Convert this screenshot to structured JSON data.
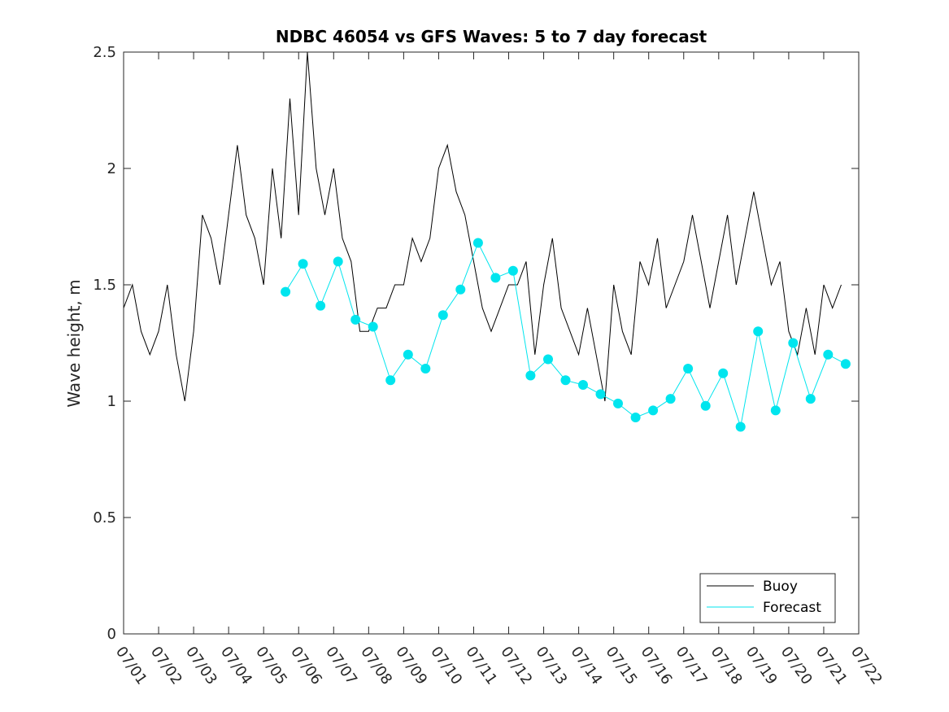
{
  "chart_data": {
    "type": "line",
    "title": "NDBC 46054 vs GFS Waves: 5 to 7 day forecast",
    "xlabel": "",
    "ylabel": "Wave height, m",
    "xlim": [
      "07/01",
      "07/22"
    ],
    "ylim": [
      0,
      2.5
    ],
    "x_tick_labels": [
      "07/01",
      "07/02",
      "07/03",
      "07/04",
      "07/05",
      "07/06",
      "07/07",
      "07/08",
      "07/09",
      "07/10",
      "07/11",
      "07/12",
      "07/13",
      "07/14",
      "07/15",
      "07/16",
      "07/17",
      "07/18",
      "07/19",
      "07/20",
      "07/21",
      "07/22"
    ],
    "y_ticks": [
      0,
      0.5,
      1,
      1.5,
      2,
      2.5
    ],
    "y_tick_labels": [
      "0",
      "0.5",
      "1",
      "1.5",
      "2",
      "2.5"
    ],
    "grid": false,
    "legend": {
      "placement": "bottom-right",
      "entries": [
        "Buoy",
        "Forecast"
      ]
    },
    "colors": {
      "buoy": "#000000",
      "forecast": "#00e5ee"
    },
    "series": [
      {
        "name": "Buoy",
        "x": [
          "07/01 00:00",
          "07/01 06:00",
          "07/01 12:00",
          "07/01 18:00",
          "07/02 00:00",
          "07/02 06:00",
          "07/02 12:00",
          "07/02 18:00",
          "07/03 00:00",
          "07/03 06:00",
          "07/03 12:00",
          "07/03 18:00",
          "07/04 00:00",
          "07/04 06:00",
          "07/04 12:00",
          "07/04 18:00",
          "07/05 00:00",
          "07/05 06:00",
          "07/05 12:00",
          "07/05 18:00",
          "07/06 00:00",
          "07/06 06:00",
          "07/06 12:00",
          "07/06 18:00",
          "07/07 00:00",
          "07/07 06:00",
          "07/07 12:00",
          "07/07 18:00",
          "07/08 00:00",
          "07/08 06:00",
          "07/08 12:00",
          "07/08 18:00",
          "07/09 00:00",
          "07/09 06:00",
          "07/09 12:00",
          "07/09 18:00",
          "07/10 00:00",
          "07/10 06:00",
          "07/10 12:00",
          "07/10 18:00",
          "07/11 00:00",
          "07/11 06:00",
          "07/11 12:00",
          "07/11 18:00",
          "07/12 00:00",
          "07/12 06:00",
          "07/12 12:00",
          "07/12 18:00",
          "07/13 00:00",
          "07/13 06:00",
          "07/13 12:00",
          "07/13 18:00",
          "07/14 00:00",
          "07/14 06:00",
          "07/14 12:00",
          "07/14 18:00",
          "07/15 00:00",
          "07/15 06:00",
          "07/15 12:00",
          "07/15 18:00",
          "07/16 00:00",
          "07/16 06:00",
          "07/16 12:00",
          "07/16 18:00",
          "07/17 00:00",
          "07/17 06:00",
          "07/17 12:00",
          "07/17 18:00",
          "07/18 00:00",
          "07/18 06:00",
          "07/18 12:00",
          "07/18 18:00",
          "07/19 00:00",
          "07/19 06:00",
          "07/19 12:00",
          "07/19 18:00",
          "07/20 00:00",
          "07/20 06:00",
          "07/20 12:00",
          "07/20 18:00",
          "07/21 00:00",
          "07/21 06:00",
          "07/21 12:00"
        ],
        "y": [
          1.4,
          1.5,
          1.3,
          1.2,
          1.3,
          1.5,
          1.2,
          1.0,
          1.3,
          1.8,
          1.7,
          1.5,
          1.8,
          2.1,
          1.8,
          1.7,
          1.5,
          2.0,
          1.7,
          2.3,
          1.8,
          2.5,
          2.0,
          1.8,
          2.0,
          1.7,
          1.6,
          1.3,
          1.3,
          1.4,
          1.4,
          1.5,
          1.5,
          1.7,
          1.6,
          1.7,
          2.0,
          2.1,
          1.9,
          1.8,
          1.6,
          1.4,
          1.3,
          1.4,
          1.5,
          1.5,
          1.6,
          1.2,
          1.5,
          1.7,
          1.4,
          1.3,
          1.2,
          1.4,
          1.2,
          1.0,
          1.5,
          1.3,
          1.2,
          1.6,
          1.5,
          1.7,
          1.4,
          1.5,
          1.6,
          1.8,
          1.6,
          1.4,
          1.6,
          1.8,
          1.5,
          1.7,
          1.9,
          1.7,
          1.5,
          1.6,
          1.3,
          1.2,
          1.4,
          1.2,
          1.5,
          1.4,
          1.5
        ]
      },
      {
        "name": "Forecast",
        "marker_x": [
          "07/05 15:00",
          "07/06 03:00",
          "07/06 15:00",
          "07/07 03:00",
          "07/07 15:00",
          "07/08 03:00",
          "07/08 15:00",
          "07/09 03:00",
          "07/09 15:00",
          "07/10 03:00",
          "07/10 15:00",
          "07/11 03:00",
          "07/11 15:00",
          "07/12 03:00",
          "07/12 15:00",
          "07/13 03:00",
          "07/13 15:00",
          "07/14 03:00",
          "07/14 15:00",
          "07/15 03:00",
          "07/15 15:00",
          "07/16 03:00",
          "07/16 15:00",
          "07/17 03:00",
          "07/17 15:00",
          "07/18 03:00",
          "07/18 15:00",
          "07/19 03:00",
          "07/19 15:00",
          "07/20 03:00",
          "07/20 15:00",
          "07/21 03:00",
          "07/21 15:00"
        ],
        "marker_y": [
          1.47,
          1.59,
          1.41,
          1.6,
          1.35,
          1.32,
          1.09,
          1.2,
          1.14,
          1.37,
          1.48,
          1.68,
          1.53,
          1.56,
          1.11,
          1.18,
          1.09,
          1.07,
          1.03,
          0.99,
          0.93,
          0.96,
          1.01,
          1.14,
          0.98,
          1.12,
          0.89,
          1.3,
          0.96,
          1.25,
          1.01,
          1.2,
          1.16
        ]
      }
    ]
  }
}
